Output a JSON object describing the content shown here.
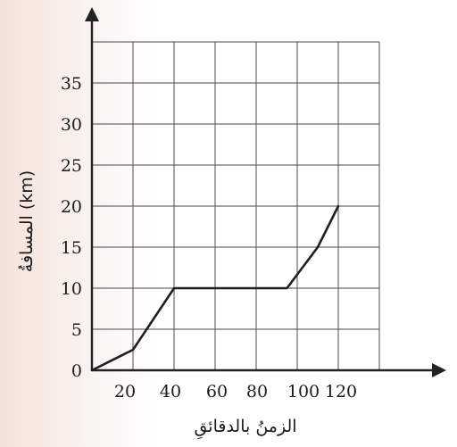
{
  "chart_data": {
    "type": "line",
    "xlabel": "الزمنُ بالدقائقِ",
    "ylabel": "المسافةُ (km)",
    "x_ticks": [
      "20",
      "40",
      "60",
      "80",
      "100",
      "120"
    ],
    "y_ticks": [
      "0",
      "5",
      "10",
      "15",
      "20",
      "25",
      "30",
      "35"
    ],
    "xlim": [
      0,
      140
    ],
    "ylim": [
      0,
      40
    ],
    "grid": true,
    "series": [
      {
        "x": [
          0,
          20,
          40,
          60,
          80,
          95,
          110,
          120
        ],
        "y": [
          0,
          2.5,
          10,
          10,
          10,
          10,
          15,
          20
        ]
      }
    ]
  },
  "colors": {
    "background_band": "#f7ece6",
    "grid": "#6b6b6b",
    "axis": "#222222",
    "line": "#1f1f1f"
  }
}
